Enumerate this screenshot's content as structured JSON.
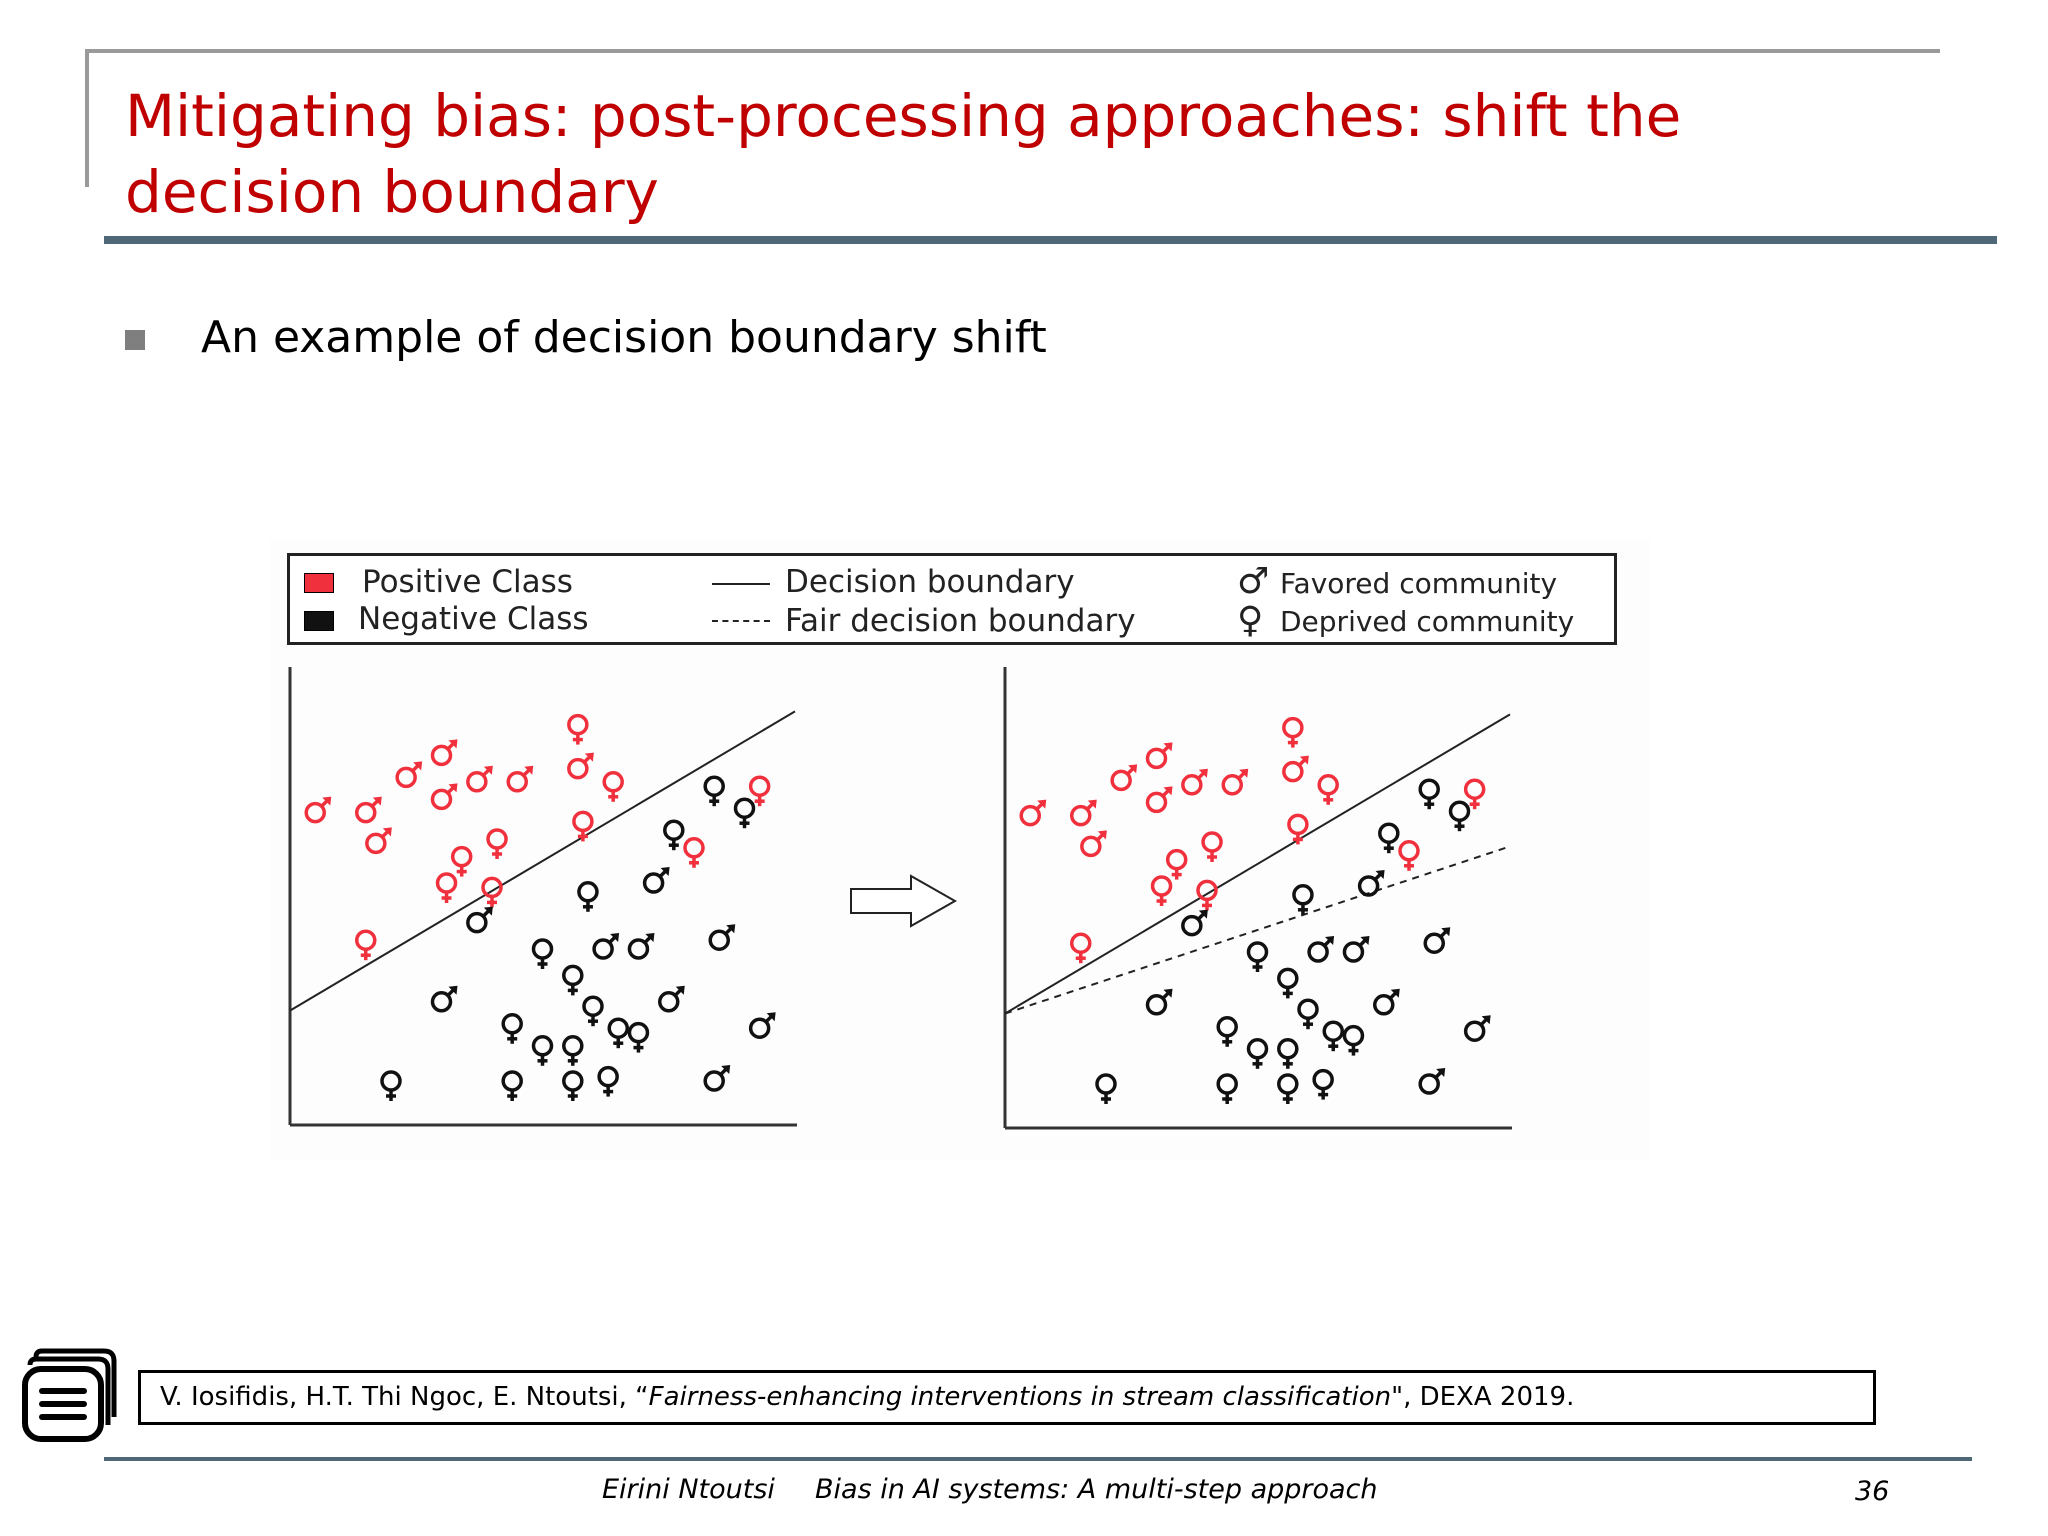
{
  "slide": {
    "title": "Mitigating bias: post-processing approaches: shift the decision boundary",
    "bullet": "An example of decision boundary shift",
    "citation": {
      "authors": "V. Iosifidis, H.T. Thi Ngoc, E. Ntoutsi, “",
      "paper_title": "Fairness-enhancing interventions in stream classification",
      "venue": "\", DEXA 2019."
    },
    "footer": {
      "author": "Eirini Ntoutsi",
      "talk_title": "Bias in AI systems: A multi-step approach",
      "page_number": "36"
    }
  },
  "legend": {
    "positive_class": "Positive Class",
    "negative_class": "Negative Class",
    "decision_boundary": "Decision boundary",
    "fair_decision_boundary": "Fair decision boundary",
    "favored_community": "Favored community",
    "deprived_community": "Deprived community"
  },
  "colors": {
    "positive": "#f0303c",
    "negative": "#111111",
    "title": "#c00000",
    "rule": "#4f6878"
  },
  "chart_data": [
    {
      "type": "scatter",
      "panel": "before",
      "decision_boundary": [
        [
          0,
          26
        ],
        [
          100,
          94
        ]
      ],
      "points": [
        {
          "x": 5,
          "y": 71,
          "cls": "positive",
          "group": "favored"
        },
        {
          "x": 15,
          "y": 71,
          "cls": "positive",
          "group": "favored"
        },
        {
          "x": 17,
          "y": 64,
          "cls": "positive",
          "group": "favored"
        },
        {
          "x": 23,
          "y": 79,
          "cls": "positive",
          "group": "favored"
        },
        {
          "x": 30,
          "y": 84,
          "cls": "positive",
          "group": "favored"
        },
        {
          "x": 30,
          "y": 74,
          "cls": "positive",
          "group": "favored"
        },
        {
          "x": 37,
          "y": 78,
          "cls": "positive",
          "group": "favored"
        },
        {
          "x": 45,
          "y": 78,
          "cls": "positive",
          "group": "favored"
        },
        {
          "x": 57,
          "y": 81,
          "cls": "positive",
          "group": "favored"
        },
        {
          "x": 57,
          "y": 91,
          "cls": "positive",
          "group": "deprived"
        },
        {
          "x": 64,
          "y": 78,
          "cls": "positive",
          "group": "deprived"
        },
        {
          "x": 58,
          "y": 69,
          "cls": "positive",
          "group": "deprived"
        },
        {
          "x": 41,
          "y": 65,
          "cls": "positive",
          "group": "deprived"
        },
        {
          "x": 34,
          "y": 61,
          "cls": "positive",
          "group": "deprived"
        },
        {
          "x": 31,
          "y": 55,
          "cls": "positive",
          "group": "deprived"
        },
        {
          "x": 40,
          "y": 54,
          "cls": "positive",
          "group": "deprived"
        },
        {
          "x": 15,
          "y": 42,
          "cls": "positive",
          "group": "deprived"
        },
        {
          "x": 93,
          "y": 77,
          "cls": "positive",
          "group": "deprived"
        },
        {
          "x": 80,
          "y": 63,
          "cls": "positive",
          "group": "deprived"
        },
        {
          "x": 84,
          "y": 77,
          "cls": "negative",
          "group": "deprived"
        },
        {
          "x": 90,
          "y": 72,
          "cls": "negative",
          "group": "deprived"
        },
        {
          "x": 76,
          "y": 67,
          "cls": "negative",
          "group": "deprived"
        },
        {
          "x": 72,
          "y": 55,
          "cls": "negative",
          "group": "favored"
        },
        {
          "x": 59,
          "y": 53,
          "cls": "negative",
          "group": "deprived"
        },
        {
          "x": 37,
          "y": 46,
          "cls": "negative",
          "group": "favored"
        },
        {
          "x": 50,
          "y": 40,
          "cls": "negative",
          "group": "deprived"
        },
        {
          "x": 62,
          "y": 40,
          "cls": "negative",
          "group": "favored"
        },
        {
          "x": 69,
          "y": 40,
          "cls": "negative",
          "group": "favored"
        },
        {
          "x": 85,
          "y": 42,
          "cls": "negative",
          "group": "favored"
        },
        {
          "x": 56,
          "y": 34,
          "cls": "negative",
          "group": "deprived"
        },
        {
          "x": 30,
          "y": 28,
          "cls": "negative",
          "group": "favored"
        },
        {
          "x": 60,
          "y": 27,
          "cls": "negative",
          "group": "deprived"
        },
        {
          "x": 75,
          "y": 28,
          "cls": "negative",
          "group": "favored"
        },
        {
          "x": 44,
          "y": 23,
          "cls": "negative",
          "group": "deprived"
        },
        {
          "x": 65,
          "y": 22,
          "cls": "negative",
          "group": "deprived"
        },
        {
          "x": 69,
          "y": 21,
          "cls": "negative",
          "group": "deprived"
        },
        {
          "x": 93,
          "y": 22,
          "cls": "negative",
          "group": "favored"
        },
        {
          "x": 50,
          "y": 18,
          "cls": "negative",
          "group": "deprived"
        },
        {
          "x": 56,
          "y": 18,
          "cls": "negative",
          "group": "deprived"
        },
        {
          "x": 20,
          "y": 10,
          "cls": "negative",
          "group": "deprived"
        },
        {
          "x": 44,
          "y": 10,
          "cls": "negative",
          "group": "deprived"
        },
        {
          "x": 56,
          "y": 10,
          "cls": "negative",
          "group": "deprived"
        },
        {
          "x": 63,
          "y": 11,
          "cls": "negative",
          "group": "deprived"
        },
        {
          "x": 84,
          "y": 10,
          "cls": "negative",
          "group": "favored"
        }
      ]
    },
    {
      "type": "scatter",
      "panel": "after",
      "decision_boundary": [
        [
          0,
          26
        ],
        [
          100,
          94
        ]
      ],
      "fair_decision_boundary": [
        [
          0,
          26
        ],
        [
          100,
          64
        ]
      ],
      "points": [
        {
          "x": 5,
          "y": 71,
          "cls": "positive",
          "group": "favored"
        },
        {
          "x": 15,
          "y": 71,
          "cls": "positive",
          "group": "favored"
        },
        {
          "x": 17,
          "y": 64,
          "cls": "positive",
          "group": "favored"
        },
        {
          "x": 23,
          "y": 79,
          "cls": "positive",
          "group": "favored"
        },
        {
          "x": 30,
          "y": 84,
          "cls": "positive",
          "group": "favored"
        },
        {
          "x": 30,
          "y": 74,
          "cls": "positive",
          "group": "favored"
        },
        {
          "x": 37,
          "y": 78,
          "cls": "positive",
          "group": "favored"
        },
        {
          "x": 45,
          "y": 78,
          "cls": "positive",
          "group": "favored"
        },
        {
          "x": 57,
          "y": 81,
          "cls": "positive",
          "group": "favored"
        },
        {
          "x": 57,
          "y": 91,
          "cls": "positive",
          "group": "deprived"
        },
        {
          "x": 64,
          "y": 78,
          "cls": "positive",
          "group": "deprived"
        },
        {
          "x": 58,
          "y": 69,
          "cls": "positive",
          "group": "deprived"
        },
        {
          "x": 41,
          "y": 65,
          "cls": "positive",
          "group": "deprived"
        },
        {
          "x": 34,
          "y": 61,
          "cls": "positive",
          "group": "deprived"
        },
        {
          "x": 31,
          "y": 55,
          "cls": "positive",
          "group": "deprived"
        },
        {
          "x": 40,
          "y": 54,
          "cls": "positive",
          "group": "deprived"
        },
        {
          "x": 15,
          "y": 42,
          "cls": "positive",
          "group": "deprived"
        },
        {
          "x": 93,
          "y": 77,
          "cls": "positive",
          "group": "deprived"
        },
        {
          "x": 80,
          "y": 63,
          "cls": "positive",
          "group": "deprived"
        },
        {
          "x": 84,
          "y": 77,
          "cls": "negative",
          "group": "deprived"
        },
        {
          "x": 90,
          "y": 72,
          "cls": "negative",
          "group": "deprived"
        },
        {
          "x": 76,
          "y": 67,
          "cls": "negative",
          "group": "deprived"
        },
        {
          "x": 72,
          "y": 55,
          "cls": "negative",
          "group": "favored"
        },
        {
          "x": 59,
          "y": 53,
          "cls": "negative",
          "group": "deprived"
        },
        {
          "x": 37,
          "y": 46,
          "cls": "negative",
          "group": "favored"
        },
        {
          "x": 50,
          "y": 40,
          "cls": "negative",
          "group": "deprived"
        },
        {
          "x": 62,
          "y": 40,
          "cls": "negative",
          "group": "favored"
        },
        {
          "x": 69,
          "y": 40,
          "cls": "negative",
          "group": "favored"
        },
        {
          "x": 85,
          "y": 42,
          "cls": "negative",
          "group": "favored"
        },
        {
          "x": 56,
          "y": 34,
          "cls": "negative",
          "group": "deprived"
        },
        {
          "x": 30,
          "y": 28,
          "cls": "negative",
          "group": "favored"
        },
        {
          "x": 60,
          "y": 27,
          "cls": "negative",
          "group": "deprived"
        },
        {
          "x": 75,
          "y": 28,
          "cls": "negative",
          "group": "favored"
        },
        {
          "x": 44,
          "y": 23,
          "cls": "negative",
          "group": "deprived"
        },
        {
          "x": 65,
          "y": 22,
          "cls": "negative",
          "group": "deprived"
        },
        {
          "x": 69,
          "y": 21,
          "cls": "negative",
          "group": "deprived"
        },
        {
          "x": 93,
          "y": 22,
          "cls": "negative",
          "group": "favored"
        },
        {
          "x": 50,
          "y": 18,
          "cls": "negative",
          "group": "deprived"
        },
        {
          "x": 56,
          "y": 18,
          "cls": "negative",
          "group": "deprived"
        },
        {
          "x": 20,
          "y": 10,
          "cls": "negative",
          "group": "deprived"
        },
        {
          "x": 44,
          "y": 10,
          "cls": "negative",
          "group": "deprived"
        },
        {
          "x": 56,
          "y": 10,
          "cls": "negative",
          "group": "deprived"
        },
        {
          "x": 63,
          "y": 11,
          "cls": "negative",
          "group": "deprived"
        },
        {
          "x": 84,
          "y": 10,
          "cls": "negative",
          "group": "favored"
        }
      ]
    }
  ]
}
